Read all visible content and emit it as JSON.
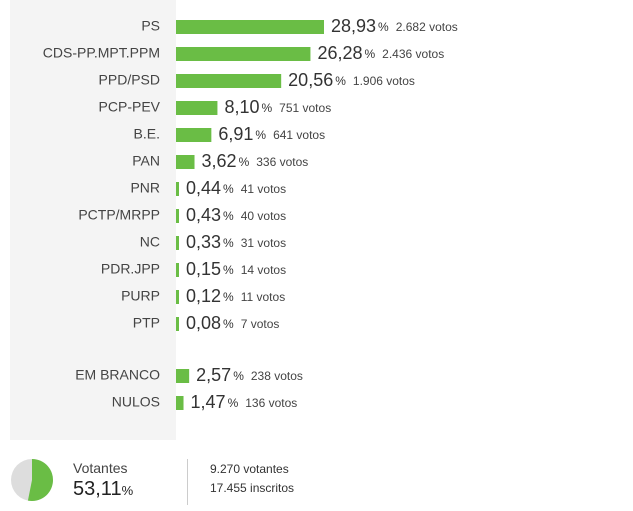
{
  "chart_data": {
    "type": "bar",
    "orientation": "horizontal",
    "bar_color": "#6abd45",
    "percent_sign": "%",
    "votes_suffix": "votos",
    "categories": [
      "PS",
      "CDS-PP.MPT.PPM",
      "PPD/PSD",
      "PCP-PEV",
      "B.E.",
      "PAN",
      "PNR",
      "PCTP/MRPP",
      "NC",
      "PDR.JPP",
      "PURP",
      "PTP",
      "EM BRANCO",
      "NULOS"
    ],
    "values": [
      28.93,
      26.28,
      20.56,
      8.1,
      6.91,
      3.62,
      0.44,
      0.43,
      0.33,
      0.15,
      0.12,
      0.08,
      2.57,
      1.47
    ],
    "value_labels": [
      "28,93",
      "26,28",
      "20,56",
      "8,10",
      "6,91",
      "3,62",
      "0,44",
      "0,43",
      "0,33",
      "0,15",
      "0,12",
      "0,08",
      "2,57",
      "1,47"
    ],
    "votes": [
      "2.682",
      "2.436",
      "1.906",
      "751",
      "641",
      "336",
      "41",
      "40",
      "31",
      "14",
      "11",
      "7",
      "238",
      "136"
    ]
  },
  "turnout": {
    "title": "Votantes",
    "value": 53.11,
    "value_label": "53,11",
    "percent_sign": "%",
    "pie_color": "#6abd45",
    "pie_bg_color": "#dddddd",
    "voters_line": "9.270 votantes",
    "registered_line": "17.455 inscritos"
  }
}
